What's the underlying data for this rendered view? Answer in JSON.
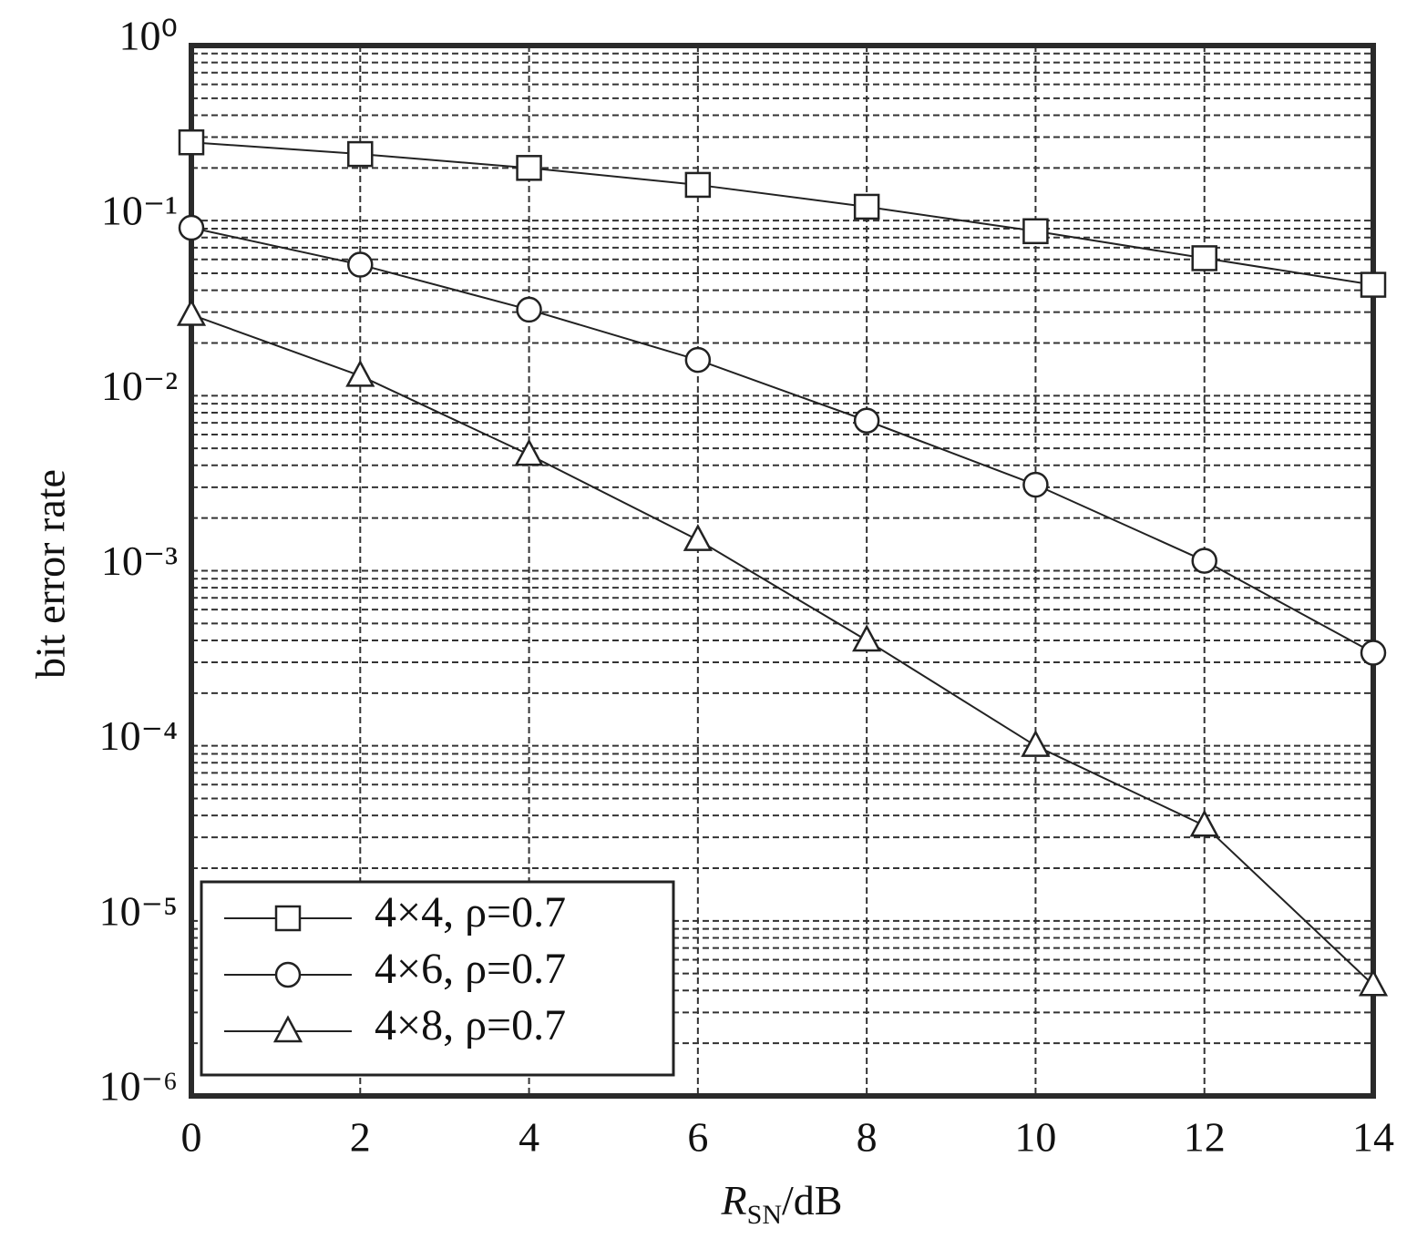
{
  "chart_data": {
    "type": "line",
    "ylabel": "bit error rate",
    "xlabel": {
      "symbol": "R",
      "subscript": "SN",
      "unit": "/dB"
    },
    "x": [
      0,
      2,
      4,
      6,
      8,
      10,
      12,
      14
    ],
    "series": [
      {
        "name": "4×4, ρ=0.7",
        "marker": "square",
        "color": "#222222",
        "values": [
          0.28,
          0.24,
          0.2,
          0.16,
          0.12,
          0.087,
          0.061,
          0.043
        ]
      },
      {
        "name": "4×6, ρ=0.7",
        "marker": "circle",
        "color": "#222222",
        "values": [
          0.091,
          0.056,
          0.031,
          0.016,
          0.0072,
          0.0031,
          0.00114,
          0.00034
        ]
      },
      {
        "name": "4×8, ρ=0.7",
        "marker": "triangle",
        "color": "#222222",
        "values": [
          0.029,
          0.013,
          0.0046,
          0.0015,
          0.0004,
          0.0001,
          3.5e-05,
          4.3e-06
        ]
      }
    ],
    "xlim": [
      0,
      14
    ],
    "xticks": [
      0,
      2,
      4,
      6,
      8,
      10,
      12,
      14
    ],
    "ylim": [
      1e-06,
      1
    ],
    "yticks": [
      {
        "value": 1e-06,
        "label": "10⁻⁶"
      },
      {
        "value": 1e-05,
        "label": "10⁻⁵"
      },
      {
        "value": 0.0001,
        "label": "10⁻⁴"
      },
      {
        "value": 0.001,
        "label": "10⁻³"
      },
      {
        "value": 0.01,
        "label": "10⁻²"
      },
      {
        "value": 0.1,
        "label": "10⁻¹"
      },
      {
        "value": 1,
        "label": "10⁰"
      }
    ],
    "yscale": "log",
    "grid": true,
    "minor_grid": true,
    "legend": "lower left"
  }
}
